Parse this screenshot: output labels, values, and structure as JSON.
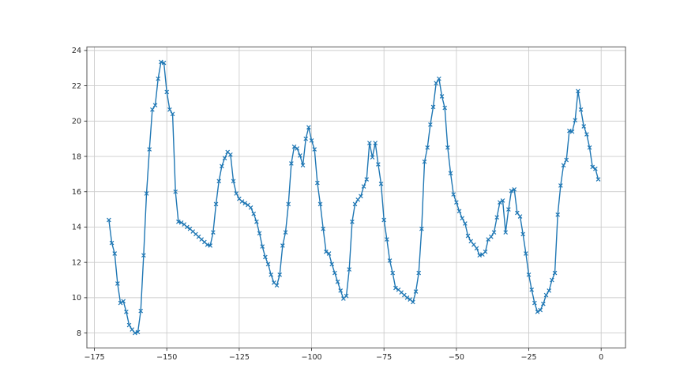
{
  "chart_data": {
    "type": "line",
    "title": "",
    "xlabel": "",
    "ylabel": "",
    "legend": null,
    "grid": true,
    "line_color": "#1f77b4",
    "marker": "x",
    "grid_color": "#cccccc",
    "spine_color": "#555555",
    "tick_mark_color": "#333333",
    "tick_text_color": "#262626",
    "background_color": "#ffffff",
    "xlim": [
      -177.6,
      8.4
    ],
    "ylim": [
      7.15,
      24.2
    ],
    "xticks": {
      "values": [
        -175,
        -150,
        -125,
        -100,
        -75,
        -50,
        -25,
        0
      ],
      "labels": [
        "−175",
        "−150",
        "−125",
        "−100",
        "−75",
        "−50",
        "−25",
        "0"
      ]
    },
    "yticks": {
      "values": [
        8,
        10,
        12,
        14,
        16,
        18,
        20,
        22,
        24
      ],
      "labels": [
        "8",
        "10",
        "12",
        "14",
        "16",
        "18",
        "20",
        "22",
        "24"
      ]
    },
    "x": [
      -170,
      -169,
      -168,
      -167,
      -166,
      -165,
      -164,
      -163,
      -162,
      -161,
      -160,
      -159,
      -158,
      -157,
      -156,
      -155,
      -154,
      -153,
      -152,
      -151,
      -150,
      -149,
      -148,
      -147,
      -146,
      -145,
      -144,
      -143,
      -142,
      -141,
      -140,
      -139,
      -138,
      -137,
      -136,
      -135,
      -134,
      -133,
      -132,
      -131,
      -130,
      -129,
      -128,
      -127,
      -126,
      -125,
      -124,
      -123,
      -122,
      -121,
      -120,
      -119,
      -118,
      -117,
      -116,
      -115,
      -114,
      -113,
      -112,
      -111,
      -110,
      -109,
      -108,
      -107,
      -106,
      -105,
      -104,
      -103,
      -102,
      -101,
      -100,
      -99,
      -98,
      -97,
      -96,
      -95,
      -94,
      -93,
      -92,
      -91,
      -90,
      -89,
      -88,
      -87,
      -86,
      -85,
      -84,
      -83,
      -82,
      -81,
      -80,
      -79,
      -78,
      -77,
      -76,
      -75,
      -74,
      -73,
      -72,
      -71,
      -70,
      -69,
      -68,
      -67,
      -66,
      -65,
      -64,
      -63,
      -62,
      -61,
      -60,
      -59,
      -58,
      -57,
      -56,
      -55,
      -54,
      -53,
      -52,
      -51,
      -50,
      -49,
      -48,
      -47,
      -46,
      -45,
      -44,
      -43,
      -42,
      -41,
      -40,
      -39,
      -38,
      -37,
      -36,
      -35,
      -34,
      -33,
      -32,
      -31,
      -30,
      -29,
      -28,
      -27,
      -26,
      -25,
      -24,
      -23,
      -22,
      -21,
      -20,
      -19,
      -18,
      -17,
      -16,
      -15,
      -14,
      -13,
      -12,
      -11,
      -10,
      -9,
      -8,
      -7,
      -6,
      -5,
      -4,
      -3,
      -2,
      -1
    ],
    "y": [
      14.4,
      13.1,
      12.5,
      10.8,
      9.7,
      9.8,
      9.2,
      8.45,
      8.2,
      8.0,
      8.05,
      9.25,
      12.4,
      15.9,
      18.4,
      20.65,
      20.9,
      22.4,
      23.35,
      23.3,
      21.65,
      20.65,
      20.4,
      16.0,
      14.3,
      14.25,
      14.15,
      14.0,
      13.9,
      13.75,
      13.6,
      13.45,
      13.3,
      13.15,
      13.0,
      12.95,
      13.7,
      15.3,
      16.6,
      17.45,
      17.9,
      18.25,
      18.1,
      16.6,
      15.9,
      15.6,
      15.45,
      15.35,
      15.25,
      15.1,
      14.75,
      14.3,
      13.65,
      12.9,
      12.3,
      11.9,
      11.3,
      10.85,
      10.7,
      11.3,
      12.95,
      13.7,
      15.3,
      17.6,
      18.55,
      18.45,
      18.05,
      17.5,
      19.0,
      19.65,
      18.9,
      18.4,
      16.5,
      15.3,
      13.9,
      12.6,
      12.5,
      11.9,
      11.4,
      10.9,
      10.4,
      9.95,
      10.1,
      11.6,
      14.3,
      15.3,
      15.55,
      15.75,
      16.3,
      16.7,
      18.76,
      17.95,
      18.76,
      17.55,
      16.45,
      14.4,
      13.3,
      12.1,
      11.4,
      10.55,
      10.45,
      10.3,
      10.15,
      10.0,
      9.9,
      9.75,
      10.35,
      11.4,
      13.9,
      17.7,
      18.5,
      19.8,
      20.8,
      22.15,
      22.4,
      21.4,
      20.75,
      18.5,
      17.05,
      15.85,
      15.4,
      14.9,
      14.5,
      14.2,
      13.5,
      13.2,
      13.0,
      12.8,
      12.4,
      12.45,
      12.6,
      13.3,
      13.45,
      13.7,
      14.55,
      15.4,
      15.5,
      13.7,
      15.0,
      16.05,
      16.13,
      14.8,
      14.6,
      13.6,
      12.5,
      11.3,
      10.45,
      9.7,
      9.2,
      9.3,
      9.65,
      10.15,
      10.4,
      11.0,
      11.4,
      14.7,
      16.35,
      17.5,
      17.8,
      19.45,
      19.4,
      20.05,
      21.7,
      20.65,
      19.7,
      19.25,
      18.5,
      17.4,
      17.3,
      16.7
    ]
  }
}
